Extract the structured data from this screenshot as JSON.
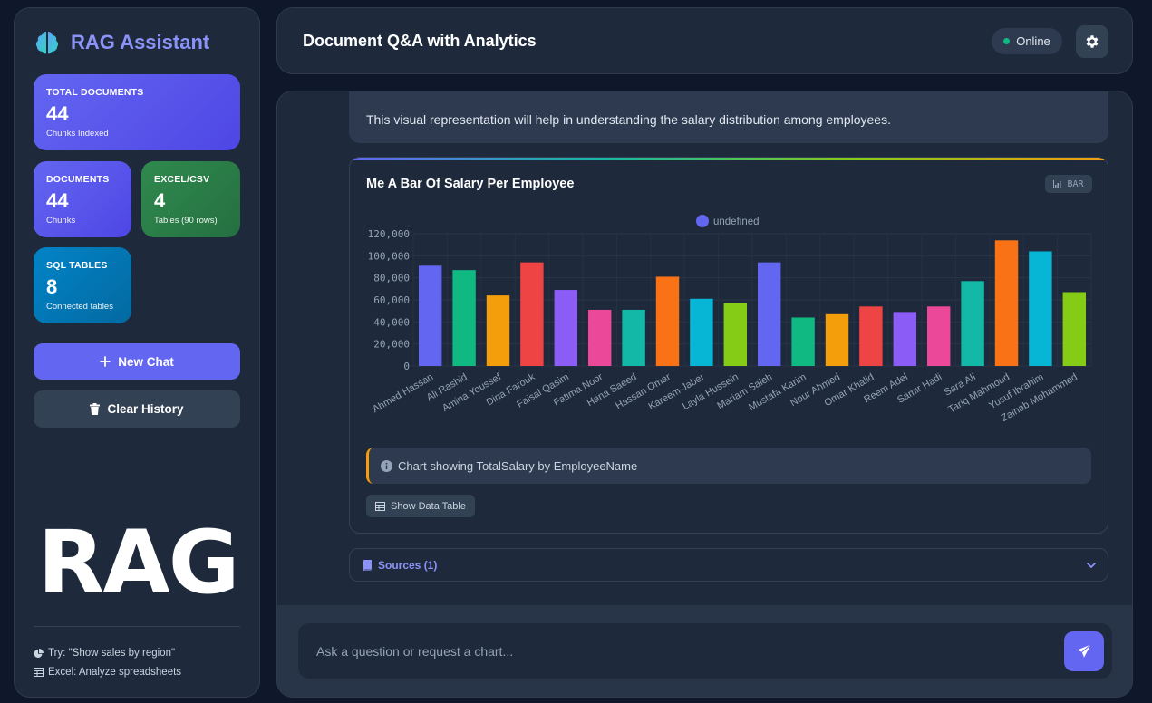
{
  "sidebar": {
    "brand": "RAG Assistant",
    "stats": {
      "total": {
        "label": "TOTAL DOCUMENTS",
        "value": "44",
        "sub": "Chunks Indexed"
      },
      "docs": {
        "label": "DOCUMENTS",
        "value": "44",
        "sub": "Chunks"
      },
      "excel": {
        "label": "EXCEL/CSV",
        "value": "4",
        "sub": "Tables (90 rows)"
      },
      "sql": {
        "label": "SQL TABLES",
        "value": "8",
        "sub": "Connected tables"
      }
    },
    "new_chat": "New Chat",
    "clear_history": "Clear History",
    "logo_text": "RAG",
    "tips": [
      "Try: \"Show sales by region\"",
      "Excel: Analyze spreadsheets"
    ]
  },
  "header": {
    "title": "Document Q&A with Analytics",
    "status": "Online"
  },
  "chat": {
    "message_text": "This visual representation will help in understanding the salary distribution among employees.",
    "chart_title": "Me A Bar Of Salary Per Employee",
    "chart_type_badge": "BAR",
    "caption": "Chart showing TotalSalary by EmployeeName",
    "show_table": "Show Data Table",
    "sources": "Sources (1)"
  },
  "composer": {
    "placeholder": "Ask a question or request a chart..."
  },
  "colors": {
    "accent": "#6366f1",
    "online": "#10b981",
    "bars": [
      "#6366f1",
      "#10b981",
      "#f59e0b",
      "#ef4444",
      "#8b5cf6",
      "#ec4899",
      "#14b8a6",
      "#f97316",
      "#06b6d4",
      "#84cc16"
    ]
  },
  "chart_data": {
    "type": "bar",
    "legend": {
      "label": "undefined",
      "placement": "top-center"
    },
    "categories": [
      "Ahmed Hassan",
      "Ali Rashid",
      "Amina Youssef",
      "Dina Farouk",
      "Faisal Qasim",
      "Fatima Noor",
      "Hana Saeed",
      "Hassan Omar",
      "Kareem Jaber",
      "Layla Hussein",
      "Mariam Saleh",
      "Mustafa Karim",
      "Nour Ahmed",
      "Omar Khalid",
      "Reem Adel",
      "Samir Hadi",
      "Sara Ali",
      "Tariq Mahmoud",
      "Yusuf Ibrahim",
      "Zainab Mohammed"
    ],
    "values": [
      91000,
      87000,
      64000,
      94000,
      69000,
      51000,
      51000,
      81000,
      61000,
      57000,
      94000,
      44000,
      47000,
      54000,
      49000,
      54000,
      77000,
      114000,
      104000,
      67000
    ],
    "yticks": [
      "0",
      "20,000",
      "40,000",
      "60,000",
      "80,000",
      "100,000",
      "120,000"
    ],
    "ylim": [
      0,
      120000
    ],
    "grid": true
  }
}
